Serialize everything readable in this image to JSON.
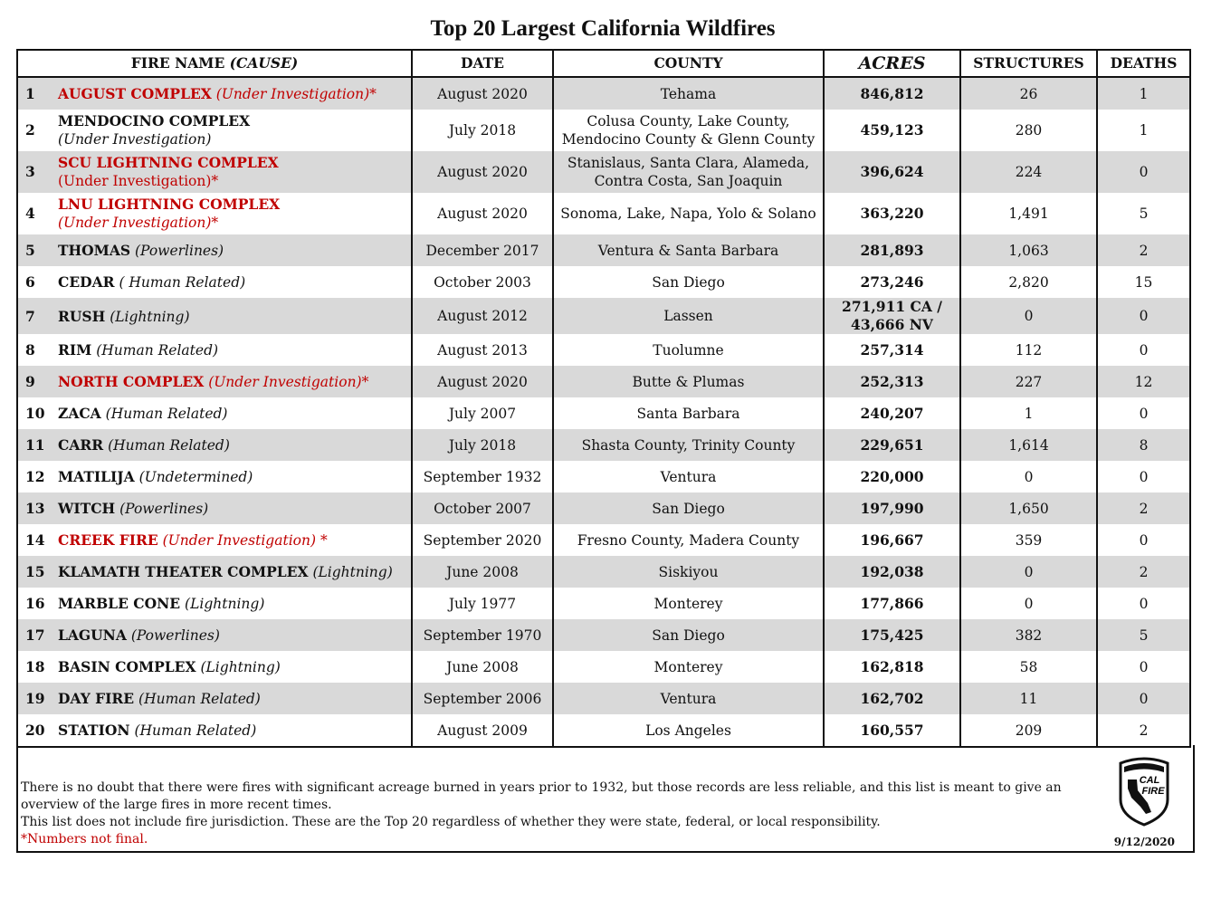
{
  "title": "Top 20 Largest California Wildfires",
  "headers": {
    "fire_name": "FIRE NAME ",
    "cause": "(CAUSE)",
    "date": "DATE",
    "county": "COUNTY",
    "acres": "ACRES",
    "structures": "STRUCTURES",
    "deaths": "DEATHS"
  },
  "colors": {
    "highlight": "#c00000",
    "stripe": "#d9d9d9"
  },
  "rows": [
    {
      "n": "1",
      "name": "AUGUST COMPLEX",
      "cause": "(Under Investigation)*",
      "red": true,
      "date": "August 2020",
      "county": [
        "Tehama"
      ],
      "acres": [
        "846,812"
      ],
      "structures": "26",
      "deaths": "1"
    },
    {
      "n": "2",
      "name": "MENDOCINO COMPLEX",
      "cause": "(Under Investigation)",
      "wrap": true,
      "date": "July 2018",
      "county": [
        "Colusa County, Lake County,",
        "Mendocino County & Glenn County"
      ],
      "acres": [
        "459,123"
      ],
      "structures": "280",
      "deaths": "1"
    },
    {
      "n": "3",
      "name": "SCU LIGHTNING COMPLEX",
      "cause": "(Under Investigation)*",
      "wrap": true,
      "plain": true,
      "red": true,
      "date": "August 2020",
      "county": [
        "Stanislaus, Santa Clara, Alameda,",
        "Contra Costa, San Joaquin"
      ],
      "acres": [
        "396,624"
      ],
      "structures": "224",
      "deaths": "0"
    },
    {
      "n": "4",
      "name": "LNU LIGHTNING COMPLEX",
      "cause": "(Under Investigation)*",
      "wrap": true,
      "red": true,
      "date": "August 2020",
      "county": [
        "Sonoma, Lake, Napa, Yolo & Solano"
      ],
      "acres": [
        "363,220"
      ],
      "structures": "1,491",
      "deaths": "5"
    },
    {
      "n": "5",
      "name": "THOMAS",
      "cause": "(Powerlines)",
      "date": "December 2017",
      "county": [
        "Ventura & Santa Barbara"
      ],
      "acres": [
        "281,893"
      ],
      "structures": "1,063",
      "deaths": "2"
    },
    {
      "n": "6",
      "name": "CEDAR",
      "cause": "( Human Related)",
      "date": "October 2003",
      "county": [
        "San Diego"
      ],
      "acres": [
        "273,246"
      ],
      "structures": "2,820",
      "deaths": "15"
    },
    {
      "n": "7",
      "name": "RUSH",
      "cause": "(Lightning)",
      "date": "August 2012",
      "county": [
        "Lassen"
      ],
      "acres": [
        "271,911 CA  /",
        "43,666 NV"
      ],
      "structures": "0",
      "deaths": "0"
    },
    {
      "n": "8",
      "name": "RIM",
      "cause": "(Human Related)",
      "date": "August 2013",
      "county": [
        "Tuolumne"
      ],
      "acres": [
        "257,314"
      ],
      "structures": "112",
      "deaths": "0"
    },
    {
      "n": "9",
      "name": "NORTH COMPLEX",
      "cause": "(Under Investigation)*",
      "red": true,
      "date": "August 2020",
      "county": [
        "Butte & Plumas"
      ],
      "acres": [
        "252,313"
      ],
      "structures": "227",
      "deaths": "12"
    },
    {
      "n": "10",
      "name": "ZACA",
      "cause": "(Human Related)",
      "date": "July 2007",
      "county": [
        "Santa Barbara"
      ],
      "acres": [
        "240,207"
      ],
      "structures": "1",
      "deaths": "0"
    },
    {
      "n": "11",
      "name": "CARR",
      "cause": "(Human Related)",
      "date": "July 2018",
      "county": [
        "Shasta County, Trinity County"
      ],
      "acres": [
        "229,651"
      ],
      "structures": "1,614",
      "deaths": "8"
    },
    {
      "n": "12",
      "name": "MATILIJA",
      "cause": "(Undetermined)",
      "date": "September 1932",
      "county": [
        "Ventura"
      ],
      "acres": [
        "220,000"
      ],
      "structures": "0",
      "deaths": "0"
    },
    {
      "n": "13",
      "name": "WITCH",
      "cause": "(Powerlines)",
      "date": "October 2007",
      "county": [
        "San Diego"
      ],
      "acres": [
        "197,990"
      ],
      "structures": "1,650",
      "deaths": "2"
    },
    {
      "n": "14",
      "name": "CREEK FIRE",
      "cause": "(Under Investigation) *",
      "red": true,
      "date": "September 2020",
      "county": [
        "Fresno County, Madera County"
      ],
      "acres": [
        "196,667"
      ],
      "structures": "359",
      "deaths": "0"
    },
    {
      "n": "15",
      "name": "KLAMATH THEATER COMPLEX",
      "cause": "(Lightning)",
      "date": "June 2008",
      "county": [
        "Siskiyou"
      ],
      "acres": [
        "192,038"
      ],
      "structures": "0",
      "deaths": "2"
    },
    {
      "n": "16",
      "name": "MARBLE CONE",
      "cause": "(Lightning)",
      "date": "July 1977",
      "county": [
        "Monterey"
      ],
      "acres": [
        "177,866"
      ],
      "structures": "0",
      "deaths": "0"
    },
    {
      "n": "17",
      "name": "LAGUNA",
      "cause": "(Powerlines)",
      "date": "September 1970",
      "county": [
        "San Diego"
      ],
      "acres": [
        "175,425"
      ],
      "structures": "382",
      "deaths": "5"
    },
    {
      "n": "18",
      "name": "BASIN COMPLEX",
      "cause": "(Lightning)",
      "date": "June 2008",
      "county": [
        "Monterey"
      ],
      "acres": [
        "162,818"
      ],
      "structures": "58",
      "deaths": "0"
    },
    {
      "n": "19",
      "name": "DAY FIRE",
      "cause": "(Human Related)",
      "date": "September 2006",
      "county": [
        "Ventura"
      ],
      "acres": [
        "162,702"
      ],
      "structures": "11",
      "deaths": "0"
    },
    {
      "n": "20",
      "name": "STATION",
      "cause": "(Human Related)",
      "date": "August 2009",
      "county": [
        "Los Angeles"
      ],
      "acres": [
        "160,557"
      ],
      "structures": "209",
      "deaths": "2"
    }
  ],
  "footer": {
    "note1": "There is no doubt that there were fires with significant acreage burned in years prior to 1932, but those records are less reliable, and this list is meant to give an overview of the large fires in more recent times.",
    "note2": "This list does not include fire jurisdiction.  These are the Top 20 regardless of whether they were state, federal, or local responsibility.",
    "note3": "*Numbers not final.",
    "logo_text": "CAL FIRE",
    "date": "9/12/2020"
  }
}
